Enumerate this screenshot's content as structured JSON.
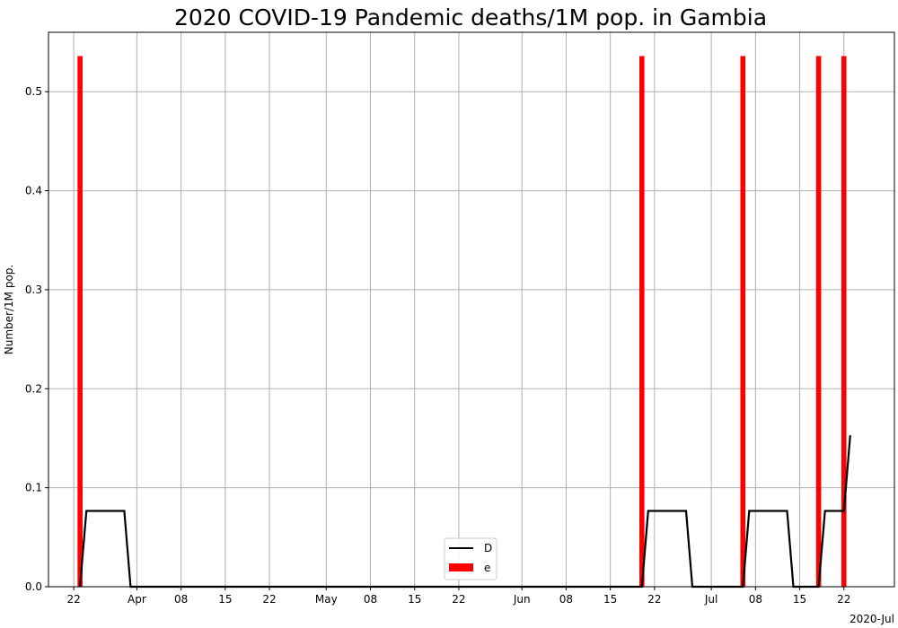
{
  "chart_data": {
    "type": "bar",
    "title": "2020 COVID-19 Pandemic deaths/1M pop. in Gambia",
    "xlabel": "",
    "ylabel": "Number/1M pop.",
    "x_offset_label": "2020-Jul",
    "ylim": [
      0,
      0.56
    ],
    "xlim": [
      "2020-03-18",
      "2020-07-30"
    ],
    "grid": true,
    "legend_position": "lower-center",
    "y_ticks": [
      "0.0",
      "0.1",
      "0.2",
      "0.3",
      "0.4",
      "0.5"
    ],
    "x_ticks": [
      {
        "date": "2020-03-22",
        "label": "22"
      },
      {
        "date": "2020-04-01",
        "label": "Apr"
      },
      {
        "date": "2020-04-08",
        "label": "08"
      },
      {
        "date": "2020-04-15",
        "label": "15"
      },
      {
        "date": "2020-04-22",
        "label": "22"
      },
      {
        "date": "2020-05-01",
        "label": "May"
      },
      {
        "date": "2020-05-08",
        "label": "08"
      },
      {
        "date": "2020-05-15",
        "label": "15"
      },
      {
        "date": "2020-05-22",
        "label": "22"
      },
      {
        "date": "2020-06-01",
        "label": "Jun"
      },
      {
        "date": "2020-06-08",
        "label": "08"
      },
      {
        "date": "2020-06-15",
        "label": "15"
      },
      {
        "date": "2020-06-22",
        "label": "22"
      },
      {
        "date": "2020-07-01",
        "label": "Jul"
      },
      {
        "date": "2020-07-08",
        "label": "08"
      },
      {
        "date": "2020-07-15",
        "label": "15"
      },
      {
        "date": "2020-07-22",
        "label": "22"
      }
    ],
    "series": [
      {
        "name": "e",
        "kind": "bar",
        "color": "#ff0000",
        "points": [
          {
            "x": "2020-03-23",
            "y": 0.536
          },
          {
            "x": "2020-06-20",
            "y": 0.536
          },
          {
            "x": "2020-07-06",
            "y": 0.536
          },
          {
            "x": "2020-07-18",
            "y": 0.536
          },
          {
            "x": "2020-07-22",
            "y": 0.536
          }
        ]
      },
      {
        "name": "D",
        "kind": "line",
        "color": "#000000",
        "points": [
          {
            "x": "2020-03-23",
            "y": 0.0
          },
          {
            "x": "2020-03-24",
            "y": 0.0766
          },
          {
            "x": "2020-03-30",
            "y": 0.0766
          },
          {
            "x": "2020-03-31",
            "y": 0.0
          },
          {
            "x": "2020-06-20",
            "y": 0.0
          },
          {
            "x": "2020-06-21",
            "y": 0.0766
          },
          {
            "x": "2020-06-27",
            "y": 0.0766
          },
          {
            "x": "2020-06-28",
            "y": 0.0
          },
          {
            "x": "2020-07-06",
            "y": 0.0
          },
          {
            "x": "2020-07-07",
            "y": 0.0766
          },
          {
            "x": "2020-07-13",
            "y": 0.0766
          },
          {
            "x": "2020-07-14",
            "y": 0.0
          },
          {
            "x": "2020-07-18",
            "y": 0.0
          },
          {
            "x": "2020-07-19",
            "y": 0.0766
          },
          {
            "x": "2020-07-22",
            "y": 0.0766
          },
          {
            "x": "2020-07-23",
            "y": 0.153
          }
        ]
      }
    ]
  }
}
